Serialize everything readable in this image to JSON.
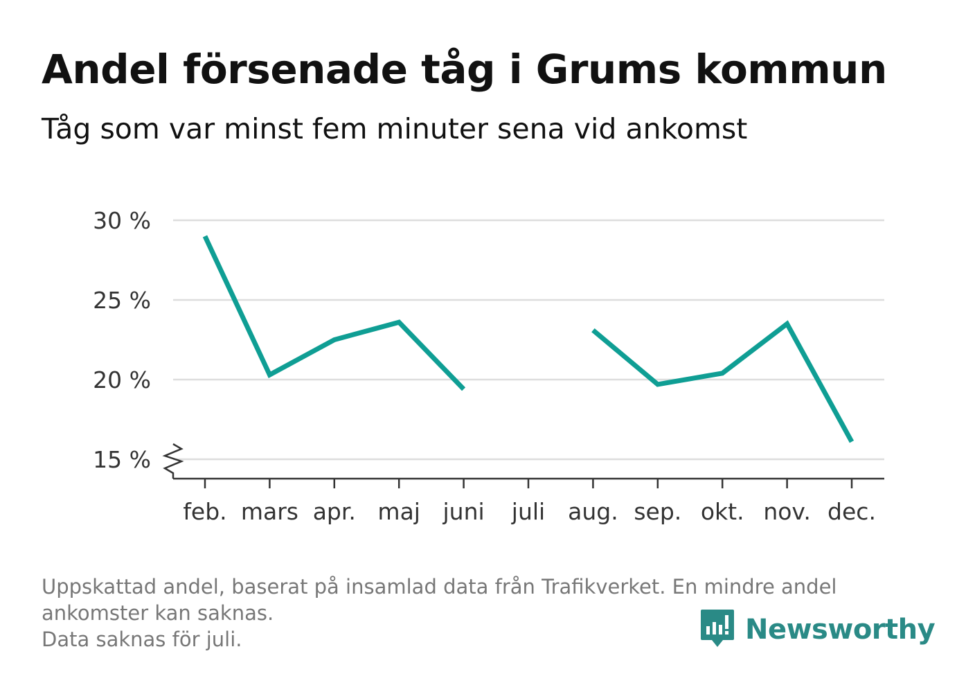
{
  "header": {
    "title": "Andel försenade tåg i Grums kommun",
    "subtitle": "Tåg som var minst fem minuter sena vid ankomst"
  },
  "footer": {
    "note_line1": "Uppskattad andel, baserat på insamlad data från Trafikverket. En mindre andel",
    "note_line2": "ankomster kan saknas.",
    "note_line3": "Data saknas för juli."
  },
  "brand": {
    "name": "Newsworthy",
    "icon": "newsworthy-chart-bubble-icon",
    "color": "#2a8a86"
  },
  "chart_data": {
    "type": "line",
    "categories": [
      "feb.",
      "mars",
      "apr.",
      "maj",
      "juni",
      "juli",
      "aug.",
      "sep.",
      "okt.",
      "nov.",
      "dec."
    ],
    "series": [
      {
        "values": [
          29.0,
          20.3,
          22.5,
          23.6,
          19.4,
          null,
          23.1,
          19.7,
          20.4,
          23.5,
          16.1
        ],
        "color": "#0f9e94"
      }
    ],
    "ylim": [
      15,
      30
    ],
    "yticks": [
      15,
      20,
      25,
      30
    ],
    "ytick_labels": [
      "15 %",
      "20 %",
      "25 %",
      "30 %"
    ],
    "y_axis_break": true,
    "grid": true,
    "legend": "none",
    "xlabel": "",
    "ylabel": ""
  }
}
